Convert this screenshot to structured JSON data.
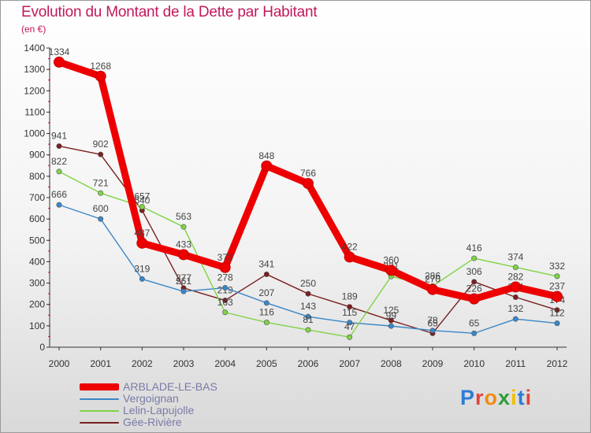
{
  "title": "Evolution du Montant de la Dette par Habitant",
  "subtitle": "(en €)",
  "brand": {
    "text": "Proxiti",
    "letter_colors": [
      "#2e7bd6",
      "#e0443b",
      "#f08c12",
      "#2e9d3a",
      "#f0c000",
      "#2e7bd6",
      "#e0443b"
    ]
  },
  "chart_data": {
    "type": "line",
    "x": [
      "2000",
      "2001",
      "2002",
      "2003",
      "2004",
      "2005",
      "2006",
      "2007",
      "2008",
      "2009",
      "2010",
      "2011",
      "2012"
    ],
    "ylim": [
      0,
      1400
    ],
    "yticks": [
      0,
      100,
      200,
      300,
      400,
      500,
      600,
      700,
      800,
      900,
      1000,
      1100,
      1200,
      1300,
      1400
    ],
    "grid": false,
    "legend_position": "bottom-left",
    "series": [
      {
        "name": "Gée-Rivière",
        "color": "#7a1f1f",
        "emphasis": false,
        "values": [
          941,
          902,
          640,
          277,
          219,
          341,
          250,
          189,
          125,
          65,
          306,
          234,
          174
        ],
        "labels": [
          "941",
          "902",
          "640",
          "277",
          "219",
          "341",
          "250",
          "189",
          "125",
          "65",
          "306",
          "234",
          "174"
        ]
      },
      {
        "name": "Vergoignan",
        "color": "#3a86c8",
        "emphasis": false,
        "values": [
          666,
          600,
          319,
          261,
          278,
          207,
          143,
          115,
          99,
          78,
          65,
          132,
          112
        ],
        "labels": [
          "666",
          "600",
          "319",
          "261",
          "278",
          "207",
          "143",
          "115",
          "99",
          "78",
          "65",
          "132",
          "112"
        ]
      },
      {
        "name": "Lelin-Lapujolle",
        "color": "#7fd446",
        "emphasis": false,
        "values": [
          822,
          721,
          657,
          563,
          163,
          116,
          81,
          47,
          331,
          286,
          416,
          374,
          332
        ],
        "labels": [
          "822",
          "721",
          "657",
          "563",
          "163",
          "116",
          "81",
          "47",
          "331",
          "286",
          "416",
          "374",
          "332"
        ]
      },
      {
        "name": "ARBLADE-LE-BAS",
        "color": "#ee0000",
        "emphasis": true,
        "values": [
          1334,
          1268,
          487,
          433,
          373,
          848,
          766,
          422,
          360,
          270,
          226,
          282,
          237
        ],
        "labels": [
          "1334",
          "1268",
          "487",
          "433",
          "373",
          "848",
          "766",
          "422",
          "360",
          "270",
          "226",
          "282",
          "237"
        ]
      }
    ],
    "legend_order": [
      "ARBLADE-LE-BAS",
      "Vergoignan",
      "Lelin-Lapujolle",
      "Gée-Rivière"
    ]
  }
}
